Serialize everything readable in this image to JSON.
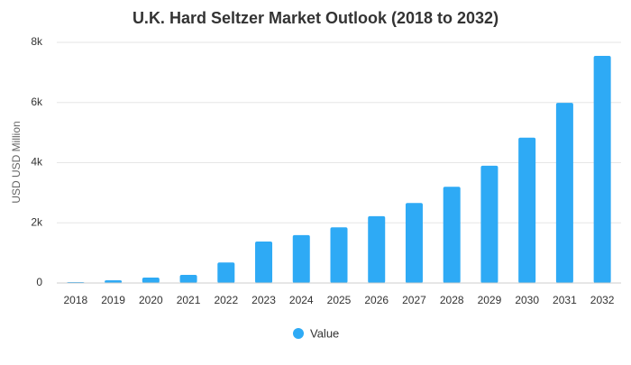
{
  "chart_data": {
    "type": "bar",
    "title": "U.K. Hard Seltzer Market Outlook (2018 to 2032)",
    "xlabel": "",
    "ylabel": "USD USD Million",
    "categories": [
      "2018",
      "2019",
      "2020",
      "2021",
      "2022",
      "2023",
      "2024",
      "2025",
      "2026",
      "2027",
      "2028",
      "2029",
      "2030",
      "2031",
      "2032"
    ],
    "series": [
      {
        "name": "Value",
        "color": "#2eaaf5",
        "values": [
          30,
          90,
          180,
          270,
          680,
          1380,
          1590,
          1850,
          2220,
          2660,
          3200,
          3900,
          4830,
          5990,
          7550
        ]
      }
    ],
    "ylim": [
      0,
      8000
    ],
    "yticks": [
      0,
      2000,
      4000,
      6000,
      8000
    ],
    "ytick_labels": [
      "0",
      "2k",
      "4k",
      "6k",
      "8k"
    ],
    "grid": true,
    "legend": {
      "position": "bottom-center"
    }
  }
}
